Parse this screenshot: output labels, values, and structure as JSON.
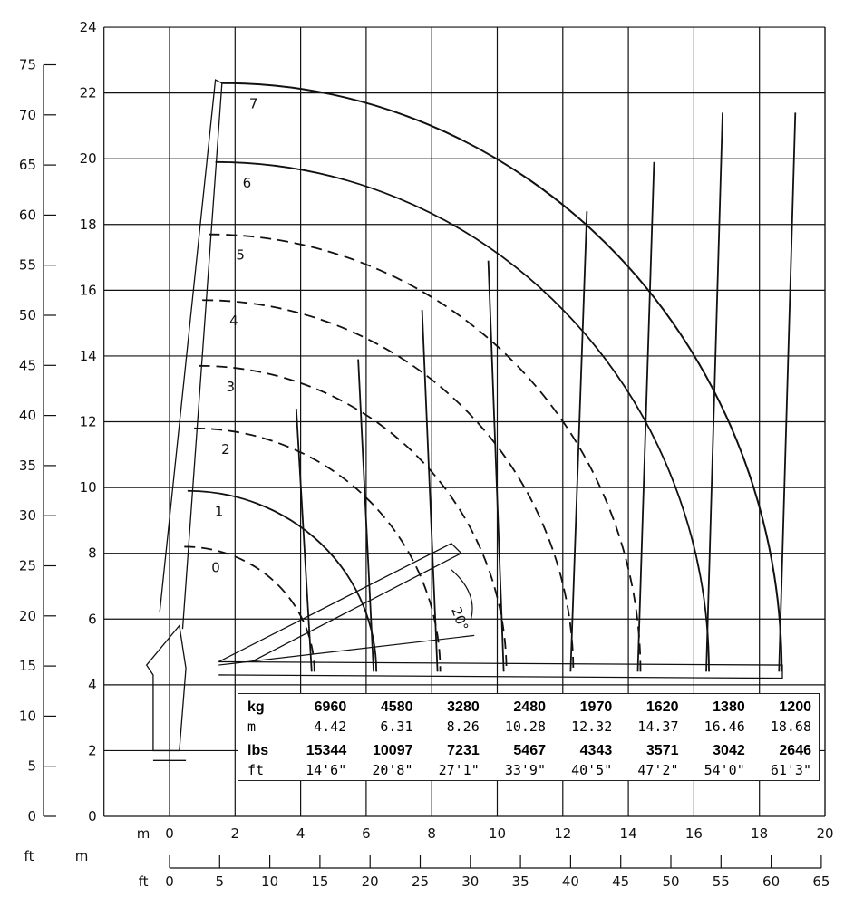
{
  "chart_data": {
    "type": "diagram",
    "title": "",
    "y_axis_m": {
      "ticks": [
        0,
        2,
        4,
        6,
        8,
        10,
        12,
        14,
        16,
        18,
        20,
        22,
        24
      ],
      "range": [
        0,
        24
      ]
    },
    "y_axis_ft": {
      "ticks": [
        0,
        5,
        10,
        15,
        20,
        25,
        30,
        35,
        40,
        45,
        50,
        55,
        60,
        65,
        70,
        75
      ],
      "unit": "ft"
    },
    "x_axis_m": {
      "label": "m",
      "ticks": [
        0,
        2,
        4,
        6,
        8,
        10,
        12,
        14,
        16,
        18,
        20
      ],
      "range": [
        -2,
        20
      ]
    },
    "x_axis_ft": {
      "label": "ft",
      "ticks": [
        0,
        5,
        10,
        15,
        20,
        25,
        30,
        35,
        40,
        45,
        50,
        55,
        60,
        65
      ]
    },
    "corner_labels": {
      "ft": "ft",
      "m": "m"
    },
    "extension_labels": [
      "0",
      "1",
      "2",
      "3",
      "4",
      "5",
      "6",
      "7"
    ],
    "angle_label": "20°",
    "extension_tops_m": [
      8.2,
      9.9,
      11.8,
      13.7,
      15.7,
      17.7,
      19.9,
      22.3
    ],
    "load_table": {
      "kg_label": "kg",
      "m_label": "m",
      "lbs_label": "lbs",
      "ft_label": "ft",
      "kg": [
        "6960",
        "4580",
        "3280",
        "2480",
        "1970",
        "1620",
        "1380",
        "1200"
      ],
      "m": [
        "4.42",
        "6.31",
        "8.26",
        "10.28",
        "12.32",
        "14.37",
        "16.46",
        "18.68"
      ],
      "lbs": [
        "15344",
        "10097",
        "7231",
        "5467",
        "4343",
        "3571",
        "3042",
        "2646"
      ],
      "ft": [
        "14'6\"",
        "20'8\"",
        "27'1\"",
        "33'9\"",
        "40'5\"",
        "47'2\"",
        "54'0\"",
        "61'3\""
      ]
    }
  }
}
